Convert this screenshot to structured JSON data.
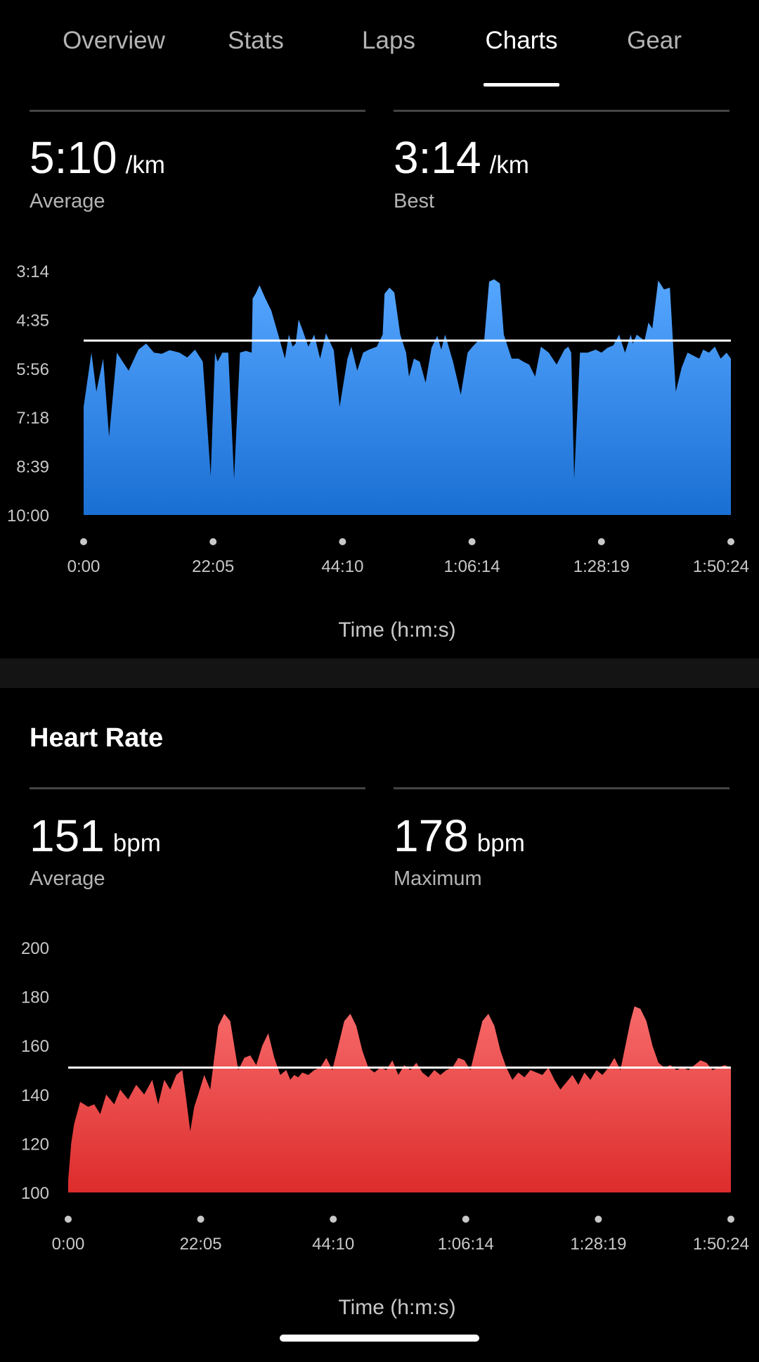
{
  "tabs": [
    {
      "label": "Overview"
    },
    {
      "label": "Stats"
    },
    {
      "label": "Laps"
    },
    {
      "label": "Charts",
      "active": true
    },
    {
      "label": "Gear"
    }
  ],
  "pace": {
    "average": {
      "value": "5:10",
      "unit": "/km",
      "label": "Average"
    },
    "best": {
      "value": "3:14",
      "unit": "/km",
      "label": "Best"
    }
  },
  "heart_rate": {
    "title": "Heart Rate",
    "average": {
      "value": "151",
      "unit": "bpm",
      "label": "Average"
    },
    "maximum": {
      "value": "178",
      "unit": "bpm",
      "label": "Maximum"
    }
  },
  "colors": {
    "pace_top": "#55a6ff",
    "pace_bottom": "#1a6fd3",
    "hr_top": "#f76a6a",
    "hr_bottom": "#dd2c2c",
    "reference_line": "#ffffff"
  },
  "chart_data": [
    {
      "type": "area",
      "y_tick_labels": [
        "3:14",
        "4:35",
        "5:56",
        "7:18",
        "8:39",
        "10:00"
      ],
      "ylim_seconds": [
        194,
        600
      ],
      "y_inverted": true,
      "x_tick_labels": [
        "0:00",
        "22:05",
        "44:10",
        "1:06:14",
        "1:28:19",
        "1:50:24"
      ],
      "xlim_seconds": [
        0,
        6624
      ],
      "xlabel": "Time (h:m:s)",
      "reference_line_seconds": 310,
      "series": [
        {
          "x_seconds": [
            0,
            80,
            130,
            200,
            260,
            340,
            400,
            460,
            560,
            640,
            720,
            800,
            880,
            980,
            1060,
            1140,
            1220,
            1300,
            1345,
            1370,
            1420,
            1480,
            1540,
            1600,
            1660,
            1720,
            1730,
            1760,
            1800,
            1860,
            1920,
            2000,
            2060,
            2100,
            2140,
            2170,
            2200,
            2240,
            2300,
            2360,
            2420,
            2480,
            2560,
            2620,
            2700,
            2740,
            2800,
            2860,
            2920,
            3000,
            3060,
            3080,
            3130,
            3180,
            3240,
            3300,
            3330,
            3380,
            3440,
            3500,
            3560,
            3620,
            3660,
            3700,
            3780,
            3860,
            3930,
            3980,
            4040,
            4100,
            4150,
            4200,
            4260,
            4300,
            4380,
            4450,
            4500,
            4560,
            4620,
            4680,
            4760,
            4840,
            4920,
            4960,
            4990,
            5020,
            5080,
            5160,
            5240,
            5300,
            5360,
            5420,
            5480,
            5540,
            5560,
            5600,
            5620,
            5660,
            5740,
            5780,
            5820,
            5880,
            5940,
            6000,
            6060,
            6120,
            6180,
            6240,
            6300,
            6340,
            6400,
            6460,
            6520,
            6580,
            6624
          ],
          "pace_seconds": [
            420,
            330,
            395,
            340,
            470,
            330,
            345,
            360,
            325,
            315,
            330,
            332,
            326,
            330,
            338,
            325,
            345,
            535,
            330,
            345,
            330,
            330,
            540,
            330,
            327,
            330,
            240,
            232,
            218,
            240,
            260,
            305,
            340,
            300,
            320,
            315,
            275,
            292,
            320,
            300,
            340,
            298,
            326,
            420,
            340,
            320,
            360,
            330,
            325,
            320,
            300,
            232,
            222,
            230,
            300,
            330,
            370,
            340,
            345,
            380,
            322,
            302,
            325,
            300,
            345,
            400,
            330,
            320,
            310,
            308,
            212,
            208,
            215,
            300,
            340,
            340,
            345,
            350,
            370,
            320,
            330,
            350,
            325,
            320,
            330,
            540,
            330,
            330,
            325,
            330,
            322,
            318,
            300,
            330,
            320,
            300,
            315,
            300,
            310,
            280,
            290,
            210,
            225,
            222,
            395,
            355,
            330,
            335,
            340,
            325,
            330,
            320,
            340,
            330,
            340
          ],
          "unit": "seconds per km"
        }
      ]
    },
    {
      "type": "area",
      "y_tick_labels": [
        "200",
        "180",
        "160",
        "140",
        "120",
        "100"
      ],
      "ylim": [
        100,
        200
      ],
      "x_tick_labels": [
        "0:00",
        "22:05",
        "44:10",
        "1:06:14",
        "1:28:19",
        "1:50:24"
      ],
      "xlim_seconds": [
        0,
        6624
      ],
      "xlabel": "Time (h:m:s)",
      "reference_line": 151,
      "series": [
        {
          "x_seconds": [
            0,
            30,
            60,
            120,
            200,
            260,
            320,
            380,
            460,
            520,
            600,
            680,
            760,
            840,
            900,
            960,
            1020,
            1080,
            1140,
            1180,
            1220,
            1260,
            1300,
            1360,
            1420,
            1460,
            1500,
            1560,
            1620,
            1660,
            1700,
            1760,
            1820,
            1880,
            1940,
            2000,
            2060,
            2120,
            2180,
            2220,
            2260,
            2300,
            2340,
            2400,
            2460,
            2520,
            2580,
            2640,
            2700,
            2760,
            2820,
            2880,
            2940,
            3000,
            3060,
            3120,
            3180,
            3240,
            3300,
            3360,
            3420,
            3480,
            3540,
            3600,
            3660,
            3720,
            3780,
            3840,
            3900,
            3960,
            4020,
            4080,
            4140,
            4200,
            4260,
            4320,
            4380,
            4440,
            4500,
            4560,
            4620,
            4680,
            4740,
            4800,
            4860,
            4920,
            4980,
            5040,
            5100,
            5160,
            5220,
            5280,
            5340,
            5400,
            5460,
            5520,
            5560,
            5620,
            5660,
            5720,
            5780,
            5840,
            5900,
            5960,
            6020,
            6080,
            6140,
            6200,
            6260,
            6320,
            6380,
            6440,
            6500,
            6560,
            6624
          ],
          "bpm": [
            105,
            120,
            128,
            137,
            135,
            136,
            132,
            140,
            136,
            142,
            138,
            144,
            140,
            146,
            136,
            146,
            142,
            148,
            150,
            138,
            125,
            135,
            140,
            148,
            142,
            155,
            168,
            173,
            170,
            160,
            150,
            155,
            156,
            152,
            160,
            165,
            155,
            148,
            150,
            146,
            148,
            147,
            149,
            148,
            150,
            151,
            155,
            150,
            160,
            170,
            173,
            168,
            158,
            151,
            149,
            151,
            150,
            154,
            148,
            152,
            150,
            153,
            149,
            147,
            150,
            148,
            150,
            151,
            155,
            154,
            150,
            160,
            170,
            173,
            168,
            158,
            151,
            146,
            149,
            147,
            150,
            149,
            148,
            151,
            146,
            142,
            145,
            148,
            144,
            149,
            146,
            150,
            148,
            151,
            155,
            150,
            158,
            170,
            176,
            175,
            170,
            160,
            153,
            151,
            152,
            150,
            151,
            150,
            152,
            154,
            153,
            150,
            151,
            152,
            151
          ]
        }
      ]
    }
  ]
}
